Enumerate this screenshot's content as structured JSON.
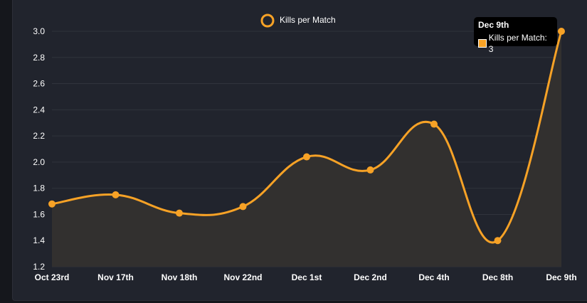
{
  "colors": {
    "line": "#f7a226",
    "fill": "#32302f",
    "background": "#21242d",
    "grid": "#30333c",
    "text": "#ffffff"
  },
  "tooltip": {
    "title": "Dec 9th",
    "label": "Kills per Match: 3"
  },
  "chart_data": {
    "type": "line",
    "categories": [
      "Oct 23rd",
      "Nov 17th",
      "Nov 18th",
      "Nov 22nd",
      "Dec 1st",
      "Dec 2nd",
      "Dec 4th",
      "Dec 8th",
      "Dec 9th"
    ],
    "series": [
      {
        "name": "Kills per Match",
        "values": [
          1.68,
          1.75,
          1.61,
          1.66,
          2.04,
          1.94,
          2.29,
          1.4,
          3.0
        ]
      }
    ],
    "yticks": [
      "1.2",
      "1.4",
      "1.6",
      "1.8",
      "2.0",
      "2.2",
      "2.4",
      "2.6",
      "2.8",
      "3.0"
    ],
    "ylim": [
      1.2,
      3.0
    ],
    "title": "",
    "xlabel": "",
    "ylabel": "",
    "legend_position": "top-center",
    "grid": true,
    "area_fill": true,
    "smooth": true
  }
}
